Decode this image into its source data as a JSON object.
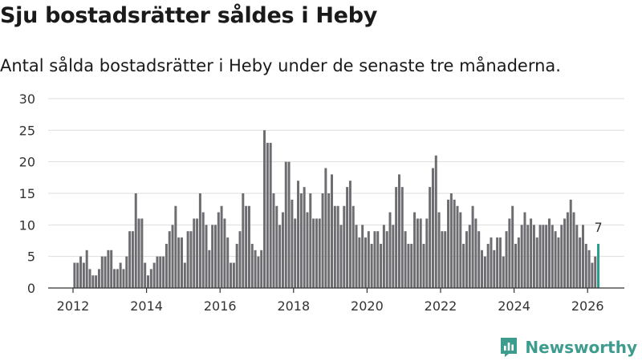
{
  "header": {
    "title": "Sju bostadsrätter såldes i Heby",
    "subtitle": "Antal sålda bostadsrätter i Heby under de senaste tre månaderna."
  },
  "brand": {
    "name": "Newsworthy",
    "icon": "newsworthy-logo-icon",
    "color": "#3e9c8f"
  },
  "colors": {
    "bar": "#6d6c70",
    "highlight": "#2a9a8a",
    "grid": "#dddddd"
  },
  "chart_data": {
    "type": "bar",
    "title": "Sju bostadsrätter såldes i Heby",
    "subtitle": "Antal sålda bostadsrätter i Heby under de senaste tre månaderna.",
    "xlabel": "",
    "ylabel": "",
    "ylim": [
      0,
      30
    ],
    "yticks": [
      0,
      5,
      10,
      15,
      20,
      25,
      30
    ],
    "xticks": [
      "2012",
      "2014",
      "2016",
      "2018",
      "2020",
      "2022",
      "2024",
      "2026"
    ],
    "grid": true,
    "period": "monthly, rolling 3-month total",
    "start": "2012-01",
    "end": "2026-02",
    "highlight_label": "7",
    "values": [
      4,
      4,
      5,
      4,
      6,
      3,
      2,
      2,
      3,
      5,
      5,
      6,
      6,
      3,
      3,
      4,
      3,
      5,
      9,
      9,
      15,
      11,
      11,
      4,
      2,
      3,
      4,
      5,
      5,
      5,
      7,
      9,
      10,
      13,
      8,
      8,
      4,
      9,
      9,
      11,
      11,
      15,
      12,
      10,
      6,
      10,
      10,
      12,
      13,
      11,
      8,
      4,
      4,
      7,
      9,
      15,
      13,
      13,
      7,
      6,
      5,
      6,
      25,
      23,
      23,
      15,
      13,
      10,
      12,
      20,
      20,
      14,
      11,
      17,
      15,
      16,
      12,
      15,
      11,
      11,
      11,
      15,
      19,
      15,
      18,
      13,
      13,
      10,
      13,
      16,
      17,
      13,
      10,
      8,
      10,
      8,
      9,
      7,
      9,
      9,
      7,
      10,
      9,
      12,
      10,
      16,
      18,
      16,
      9,
      7,
      7,
      12,
      11,
      11,
      7,
      11,
      16,
      19,
      21,
      12,
      9,
      9,
      14,
      15,
      14,
      13,
      12,
      7,
      9,
      10,
      13,
      11,
      9,
      6,
      5,
      7,
      8,
      6,
      8,
      8,
      5,
      9,
      11,
      13,
      7,
      8,
      10,
      12,
      10,
      11,
      10,
      8,
      10,
      10,
      10,
      11,
      10,
      9,
      8,
      10,
      11,
      12,
      14,
      12,
      10,
      8,
      10,
      7,
      6,
      4,
      5,
      7
    ]
  }
}
